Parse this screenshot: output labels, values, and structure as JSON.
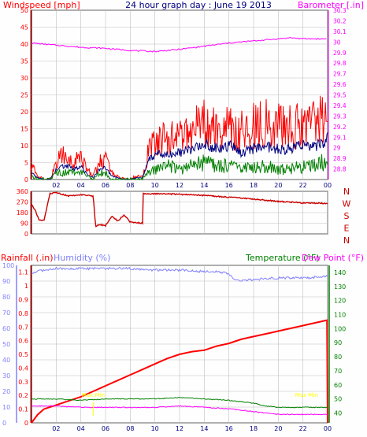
{
  "colors": {
    "background": "#fefefe",
    "panel_border": "#000000",
    "grid": "#c0c0c0",
    "wind_red": "#ff0000",
    "wind_green": "#008000",
    "wind_navy": "#000080",
    "barometer": "#ff00ff",
    "direction": "#cc0000",
    "rainfall": "#ff0000",
    "humidity": "#8080ff",
    "temperature": "#008000",
    "dewpoint": "#ff00ff",
    "marker": "#ffff00",
    "title": "#000080"
  },
  "chart_data": [
    {
      "type": "line",
      "title": "24 hour graph day : June 19 2013",
      "ylabel": "Windspeed [mph]",
      "y2label": "Barometer [.in]",
      "x_ticks": [
        "02",
        "04",
        "06",
        "08",
        "10",
        "12",
        "14",
        "16",
        "18",
        "20",
        "22",
        "00"
      ],
      "ylim": [
        0,
        50
      ],
      "y_ticks": [
        0,
        5,
        10,
        15,
        20,
        25,
        30,
        35,
        40,
        45,
        50
      ],
      "y2lim": [
        28.7,
        30.3
      ],
      "y2_ticks": [
        "28.8",
        "28.9",
        "29",
        "29.1",
        "29.2",
        "29.3",
        "29.4",
        "29.5",
        "29.6",
        "29.7",
        "29.8",
        "29.9",
        "30",
        "30.1",
        "30.2",
        "30.3"
      ],
      "grid": true,
      "series": [
        {
          "kind": "wind_gust",
          "color_key": "wind_red",
          "x": [
            0,
            0.5,
            1,
            1.5,
            2,
            2.5,
            3,
            3.5,
            4,
            4.5,
            5,
            5.5,
            6,
            6.5,
            7,
            7.5,
            8,
            8.5,
            9,
            9.5,
            10,
            11,
            12,
            13,
            14,
            15,
            16,
            17,
            18,
            19,
            20,
            21,
            22,
            23,
            24
          ],
          "values": [
            4,
            1,
            0,
            0,
            5,
            7,
            6,
            5,
            7,
            3,
            1,
            5,
            6,
            2,
            1,
            0,
            0,
            1,
            1,
            9,
            11,
            12,
            13,
            14,
            17,
            14,
            15,
            14,
            16,
            17,
            16,
            16,
            17,
            16,
            19
          ]
        },
        {
          "kind": "wind_avg",
          "color_key": "wind_navy",
          "x": [
            0,
            0.5,
            1,
            1.5,
            2,
            2.5,
            3,
            3.5,
            4,
            4.5,
            5,
            5.5,
            6,
            6.5,
            7,
            7.5,
            8,
            8.5,
            9,
            9.5,
            10,
            11,
            12,
            13,
            14,
            15,
            16,
            17,
            18,
            19,
            20,
            21,
            22,
            23,
            24
          ],
          "values": [
            2,
            0.5,
            0,
            0,
            3,
            4,
            4,
            3,
            4,
            1.5,
            0.5,
            3,
            3.5,
            1,
            0.5,
            0,
            0,
            0.5,
            0.5,
            6,
            7,
            8,
            8,
            9,
            11,
            9,
            10,
            8,
            9,
            10,
            9,
            9,
            10,
            10,
            12
          ]
        },
        {
          "kind": "wind_low",
          "color_key": "wind_green",
          "x": [
            0,
            0.5,
            1,
            1.5,
            2,
            2.5,
            3,
            3.5,
            4,
            4.5,
            5,
            5.5,
            6,
            6.5,
            7,
            7.5,
            8,
            8.5,
            9,
            9.5,
            10,
            11,
            12,
            13,
            14,
            15,
            16,
            17,
            18,
            19,
            20,
            21,
            22,
            23,
            24
          ],
          "values": [
            1,
            0,
            0,
            0,
            2,
            2,
            2,
            2,
            2,
            1,
            0,
            2,
            2,
            0,
            0,
            0,
            0,
            0,
            0,
            3,
            3,
            4,
            3,
            4,
            5,
            4,
            4,
            3,
            4,
            4,
            3,
            3,
            4,
            4,
            6
          ]
        },
        {
          "kind": "barometer",
          "color_key": "barometer",
          "axis": "right",
          "x": [
            0,
            2,
            4,
            6,
            8,
            10,
            11,
            12,
            14,
            16,
            18,
            20,
            21,
            22,
            24
          ],
          "values": [
            29.99,
            29.97,
            29.95,
            29.94,
            29.92,
            29.91,
            29.92,
            29.93,
            29.96,
            29.99,
            30.01,
            30.03,
            30.04,
            30.03,
            30.03
          ]
        }
      ]
    },
    {
      "type": "line",
      "y_ticks": [
        0,
        90,
        180,
        270,
        360
      ],
      "ylim": [
        0,
        360
      ],
      "compass": [
        "N",
        "W",
        "S",
        "E",
        "N"
      ],
      "grid": true,
      "series": [
        {
          "kind": "wind_direction",
          "color_key": "direction",
          "x": [
            0,
            0.3,
            0.6,
            1,
            1.5,
            2,
            2.5,
            3,
            4,
            5,
            5.2,
            5.5,
            6,
            6.5,
            7,
            7.5,
            8,
            9,
            9.05,
            10,
            12,
            14,
            16,
            18,
            20,
            22,
            24
          ],
          "values": [
            250,
            200,
            120,
            110,
            340,
            350,
            335,
            320,
            330,
            320,
            60,
            80,
            70,
            150,
            110,
            160,
            100,
            90,
            340,
            340,
            335,
            325,
            310,
            295,
            275,
            262,
            258
          ]
        }
      ]
    },
    {
      "type": "line",
      "ylabel": "Rainfall (.in)",
      "y2label": "Humidity (%)",
      "y3label": "Temperature (°F)",
      "y4label": "Dew Point (°F)",
      "humidity_ticks": [
        0,
        10,
        20,
        30,
        40,
        50,
        60,
        70,
        80,
        90,
        100
      ],
      "humidity_lim": [
        0,
        100
      ],
      "rain_ticks": [
        "0",
        "0.1",
        "0.2",
        "0.3",
        "0.4",
        "0.5",
        "0.6",
        "0.7",
        "0.8",
        "0.9",
        "1",
        "1.1"
      ],
      "rain_lim": [
        0,
        1.15
      ],
      "temp_ticks": [
        40,
        50,
        60,
        70,
        80,
        90,
        100,
        110,
        120,
        130,
        140
      ],
      "temp_lim": [
        33,
        145
      ],
      "markers": [
        "Max Min",
        "Max Min"
      ],
      "grid": true,
      "series": [
        {
          "kind": "rainfall",
          "color_key": "rainfall",
          "axis": "rain",
          "x": [
            0,
            0.5,
            1,
            2,
            3,
            4,
            5,
            6,
            7,
            8,
            9,
            10,
            11,
            12,
            13,
            14,
            15,
            16,
            17,
            18,
            19,
            20,
            21,
            22,
            23,
            23.95,
            24
          ],
          "values": [
            0,
            0.06,
            0.1,
            0.13,
            0.16,
            0.19,
            0.23,
            0.27,
            0.31,
            0.35,
            0.39,
            0.43,
            0.47,
            0.5,
            0.52,
            0.53,
            0.56,
            0.58,
            0.61,
            0.63,
            0.65,
            0.67,
            0.69,
            0.71,
            0.73,
            0.75,
            0
          ]
        },
        {
          "kind": "humidity",
          "color_key": "humidity",
          "axis": "humidity",
          "x": [
            0,
            1,
            2,
            4,
            6,
            8,
            10,
            12,
            14,
            15,
            16,
            16.3,
            17,
            18,
            20,
            22,
            24
          ],
          "values": [
            95,
            97,
            98,
            98,
            98,
            98,
            97,
            97,
            96,
            96,
            95,
            92,
            90,
            91,
            92,
            92,
            93
          ]
        },
        {
          "kind": "temperature",
          "color_key": "temperature",
          "axis": "temp",
          "x": [
            0,
            2,
            4,
            6,
            8,
            10,
            12,
            14,
            16,
            17,
            18,
            19,
            20,
            22,
            24
          ],
          "values": [
            50,
            50,
            49,
            50,
            50,
            50,
            51,
            50,
            49,
            48,
            47,
            45,
            44,
            44,
            44
          ]
        },
        {
          "kind": "dew_point",
          "color_key": "dewpoint",
          "axis": "temp",
          "x": [
            0,
            2,
            4,
            6,
            8,
            10,
            12,
            14,
            16,
            17,
            18,
            19,
            20,
            22,
            24
          ],
          "values": [
            45,
            45,
            44,
            44,
            44,
            44,
            45,
            44,
            43,
            42,
            41,
            40,
            39,
            39,
            39
          ]
        }
      ]
    }
  ]
}
